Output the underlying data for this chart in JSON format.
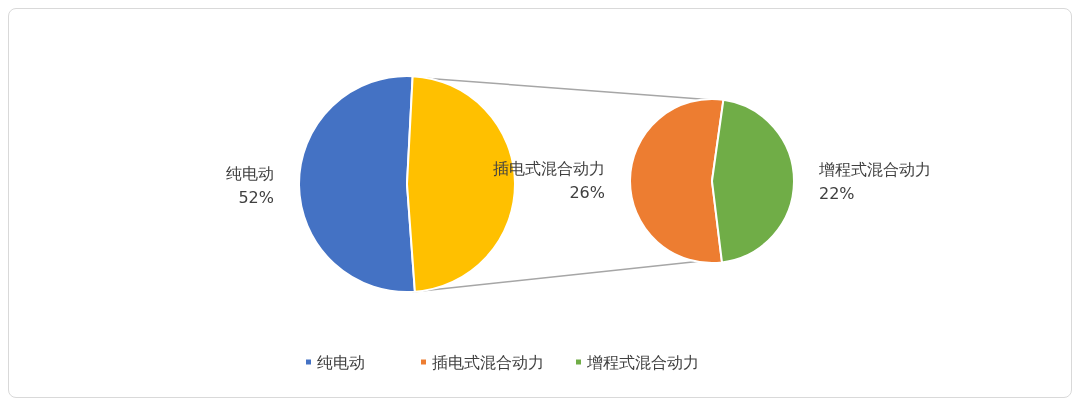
{
  "chart_data": [
    {
      "type": "pie",
      "categories": [
        "纯电动",
        null
      ],
      "values": [
        52,
        48
      ],
      "colors": [
        "#4472c4",
        "#ffc000"
      ],
      "legend": "bottom",
      "value_labels": [
        "52%",
        null
      ]
    },
    {
      "type": "pie",
      "categories": [
        "插电式混合动力",
        "增程式混合动力"
      ],
      "values": [
        26,
        22
      ],
      "colors": [
        "#ed7d31",
        "#70ad47"
      ],
      "legend": "bottom",
      "value_labels": [
        "26%",
        "22%"
      ]
    }
  ]
}
